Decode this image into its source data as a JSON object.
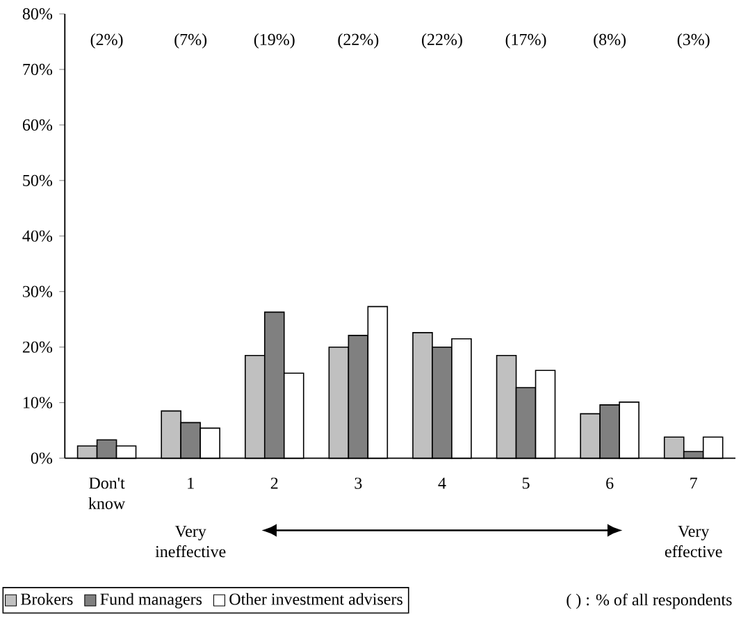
{
  "chart_data": {
    "type": "bar",
    "categories": [
      "Don't know",
      "1",
      "2",
      "3",
      "4",
      "5",
      "6",
      "7"
    ],
    "series": [
      {
        "name": "Brokers",
        "color": "#c0c0c0",
        "values": [
          2.2,
          8.5,
          18.5,
          20.0,
          22.6,
          18.5,
          8.0,
          3.8
        ]
      },
      {
        "name": "Fund managers",
        "color": "#808080",
        "values": [
          3.3,
          6.4,
          26.3,
          22.1,
          20.0,
          12.7,
          9.6,
          1.2
        ]
      },
      {
        "name": "Other investment advisers",
        "color": "#ffffff",
        "values": [
          2.2,
          5.4,
          15.3,
          27.3,
          21.5,
          15.8,
          10.1,
          3.8
        ]
      }
    ],
    "ylim": [
      0,
      80
    ],
    "yticks": [
      {
        "value": 0,
        "label": "0%"
      },
      {
        "value": 10,
        "label": "10%"
      },
      {
        "value": 20,
        "label": "20%"
      },
      {
        "value": 30,
        "label": "30%"
      },
      {
        "value": 40,
        "label": "40%"
      },
      {
        "value": 50,
        "label": "50%"
      },
      {
        "value": 60,
        "label": "60%"
      },
      {
        "value": 70,
        "label": "70%"
      },
      {
        "value": 80,
        "label": "80%"
      }
    ],
    "grid": false,
    "legend": "bottom left",
    "annotations": [
      "(2%)",
      "(7%)",
      "(19%)",
      "(22%)",
      "(22%)",
      "(17%)",
      "(8%)",
      "(3%)",
      "Very ineffective",
      "Very effective",
      "( ) : % of all respondents"
    ]
  }
}
